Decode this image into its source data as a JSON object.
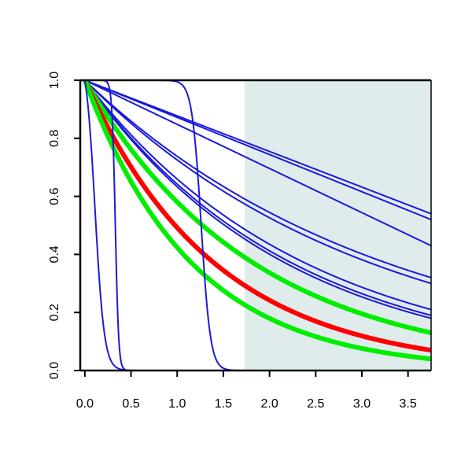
{
  "chart_data": {
    "type": "line",
    "title": "",
    "xlabel": "",
    "ylabel": "",
    "xlim": [
      -0.05,
      3.75
    ],
    "ylim": [
      0,
      1
    ],
    "x_ticks": [
      0,
      0.5,
      1,
      1.5,
      2,
      2.5,
      3,
      3.5
    ],
    "x_tick_labels": [
      "0.0",
      "0.5",
      "1.0",
      "1.5",
      "2.0",
      "2.5",
      "3.0",
      "3.5"
    ],
    "y_ticks": [
      0,
      0.2,
      0.4,
      0.6,
      0.8,
      1
    ],
    "y_tick_labels": [
      "0.0",
      "0.2",
      "0.4",
      "0.6",
      "0.8",
      "1.0"
    ],
    "grid": false,
    "legend": "none",
    "shaded_region": {
      "x_start": 1.73,
      "x_end": 3.75,
      "color": "#e0ecec"
    },
    "colors": {
      "blue": "#1a1adb",
      "red": "#ff0000",
      "green": "#00ee00"
    },
    "series": [
      {
        "color": "blue",
        "kind": "linear",
        "x_end": 3.75,
        "y_end": 0.54
      },
      {
        "color": "blue",
        "kind": "linear",
        "x_end": 3.75,
        "y_end": 0.52
      },
      {
        "color": "blue",
        "kind": "linear",
        "x_end": 3.75,
        "y_end": 0.43
      },
      {
        "color": "blue",
        "kind": "exp",
        "x_end": 3.75,
        "y_end": 0.32
      },
      {
        "color": "blue",
        "kind": "exp",
        "x_end": 3.75,
        "y_end": 0.3
      },
      {
        "color": "blue",
        "kind": "exp",
        "x_end": 3.75,
        "y_end": 0.21
      },
      {
        "color": "blue",
        "kind": "exp",
        "x_end": 3.75,
        "y_end": 0.19
      },
      {
        "color": "blue",
        "kind": "exp",
        "x_end": 3.75,
        "y_end": 0.18
      },
      {
        "color": "green",
        "kind": "exp",
        "x_end": 3.75,
        "y_end": 0.13
      },
      {
        "color": "red",
        "kind": "exp",
        "x_end": 3.75,
        "y_end": 0.07
      },
      {
        "color": "green",
        "kind": "exp",
        "x_end": 3.75,
        "y_end": 0.04
      },
      {
        "color": "blue",
        "kind": "logistic",
        "midpoint": 0.11,
        "width": 0.05
      },
      {
        "color": "blue",
        "kind": "logistic",
        "midpoint": 0.33,
        "width": 0.018
      },
      {
        "color": "blue",
        "kind": "logistic",
        "midpoint": 1.26,
        "width": 0.05
      }
    ]
  }
}
